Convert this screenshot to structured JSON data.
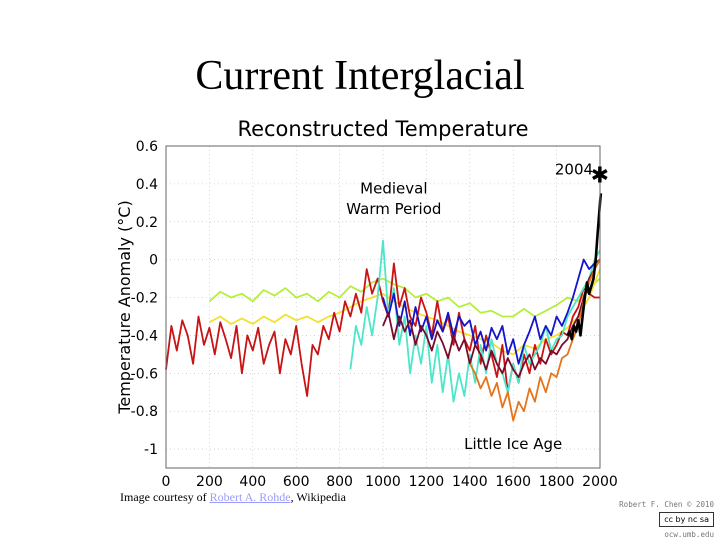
{
  "slide": {
    "title": "Current Interglacial",
    "credit_prefix": "Image courtesy of ",
    "credit_link": "Robert A. Rohde",
    "credit_suffix": ", Wikipedia",
    "watermark_author": "Robert F. Chen © 2010",
    "watermark_license": "cc by nc sa",
    "watermark_site": "ocw.umb.edu"
  },
  "chart_data": {
    "type": "line",
    "title": "Reconstructed Temperature",
    "xlabel": "",
    "ylabel": "Temperature Anomaly (°C)",
    "xlim": [
      0,
      2000
    ],
    "ylim": [
      -1.1,
      0.6
    ],
    "xticks": [
      0,
      200,
      400,
      600,
      800,
      1000,
      1200,
      1400,
      1600,
      1800,
      2000
    ],
    "yticks": [
      0.6,
      0.4,
      0.2,
      0,
      -0.2,
      -0.4,
      -0.6,
      -0.8,
      -1
    ],
    "ytick_labels": [
      "0.6",
      "0.4",
      "0.2",
      "0",
      "-0.2",
      "-0.4",
      "-0.6",
      "-0.8",
      "-1"
    ],
    "grid": true,
    "annotations": [
      {
        "text": "Medieval",
        "x": 1050,
        "y": 0.35
      },
      {
        "text": "Warm Period",
        "x": 1050,
        "y": 0.24
      },
      {
        "text": "Little Ice Age",
        "x": 1600,
        "y": -1.0
      },
      {
        "text": "2004",
        "x": 1880,
        "y": 0.45
      }
    ],
    "marker": {
      "label": "2004",
      "x": 2004,
      "y": 0.45
    },
    "series": [
      {
        "name": "reconstruction-yellowgreen",
        "color": "#b5ef3c",
        "x": [
          200,
          250,
          300,
          350,
          400,
          450,
          500,
          550,
          600,
          650,
          700,
          750,
          800,
          850,
          900,
          950,
          1000,
          1050,
          1100,
          1150,
          1200,
          1250,
          1300,
          1350,
          1400,
          1450,
          1500,
          1550,
          1600,
          1650,
          1700,
          1750,
          1800,
          1850,
          1900,
          1950,
          2000
        ],
        "y": [
          -0.22,
          -0.17,
          -0.2,
          -0.18,
          -0.22,
          -0.16,
          -0.19,
          -0.15,
          -0.2,
          -0.18,
          -0.22,
          -0.17,
          -0.2,
          -0.14,
          -0.17,
          -0.12,
          -0.1,
          -0.13,
          -0.15,
          -0.2,
          -0.18,
          -0.22,
          -0.2,
          -0.25,
          -0.23,
          -0.28,
          -0.27,
          -0.3,
          -0.3,
          -0.26,
          -0.3,
          -0.27,
          -0.24,
          -0.2,
          -0.22,
          -0.15,
          -0.1
        ]
      },
      {
        "name": "reconstruction-yellow",
        "color": "#f2e12d",
        "x": [
          200,
          250,
          300,
          350,
          400,
          450,
          500,
          550,
          600,
          650,
          700,
          750,
          800,
          850,
          900,
          950,
          1000,
          1050,
          1100,
          1150,
          1200,
          1250,
          1300,
          1350,
          1400,
          1450,
          1500,
          1550,
          1600,
          1650,
          1700,
          1750,
          1800,
          1850,
          1900,
          1950,
          2000
        ],
        "y": [
          -0.33,
          -0.3,
          -0.34,
          -0.31,
          -0.34,
          -0.3,
          -0.33,
          -0.29,
          -0.32,
          -0.3,
          -0.33,
          -0.3,
          -0.28,
          -0.25,
          -0.22,
          -0.2,
          -0.18,
          -0.22,
          -0.25,
          -0.28,
          -0.3,
          -0.32,
          -0.35,
          -0.38,
          -0.4,
          -0.42,
          -0.44,
          -0.48,
          -0.5,
          -0.45,
          -0.47,
          -0.42,
          -0.4,
          -0.36,
          -0.3,
          -0.2,
          -0.05
        ]
      },
      {
        "name": "reconstruction-red-long",
        "color": "#c81414",
        "x": [
          0,
          25,
          50,
          75,
          100,
          125,
          150,
          175,
          200,
          225,
          250,
          275,
          300,
          325,
          350,
          375,
          400,
          425,
          450,
          475,
          500,
          525,
          550,
          575,
          600,
          625,
          650,
          675,
          700,
          725,
          750,
          775,
          800,
          825,
          850,
          875,
          900,
          925,
          950,
          975,
          1000,
          1025,
          1050,
          1075,
          1100,
          1125,
          1150,
          1175,
          1200,
          1225,
          1250,
          1275,
          1300,
          1325,
          1350,
          1375,
          1400,
          1425,
          1450,
          1475,
          1500,
          1525,
          1550,
          1575,
          1600,
          1625,
          1650,
          1675,
          1700,
          1725,
          1750,
          1775,
          1800,
          1825,
          1850,
          1875,
          1900,
          1925,
          1950,
          1975,
          2000
        ],
        "y": [
          -0.58,
          -0.35,
          -0.48,
          -0.32,
          -0.4,
          -0.55,
          -0.3,
          -0.45,
          -0.36,
          -0.5,
          -0.33,
          -0.42,
          -0.52,
          -0.35,
          -0.6,
          -0.4,
          -0.48,
          -0.36,
          -0.55,
          -0.45,
          -0.38,
          -0.6,
          -0.42,
          -0.5,
          -0.35,
          -0.55,
          -0.72,
          -0.45,
          -0.5,
          -0.35,
          -0.42,
          -0.28,
          -0.38,
          -0.22,
          -0.3,
          -0.18,
          -0.28,
          -0.05,
          -0.18,
          -0.1,
          -0.22,
          -0.3,
          -0.02,
          -0.25,
          -0.15,
          -0.3,
          -0.35,
          -0.2,
          -0.28,
          -0.4,
          -0.22,
          -0.38,
          -0.3,
          -0.45,
          -0.28,
          -0.42,
          -0.48,
          -0.35,
          -0.55,
          -0.4,
          -0.5,
          -0.62,
          -0.45,
          -0.7,
          -0.55,
          -0.65,
          -0.5,
          -0.6,
          -0.45,
          -0.55,
          -0.42,
          -0.5,
          -0.45,
          -0.38,
          -0.4,
          -0.3,
          -0.25,
          -0.15,
          -0.18,
          -0.2,
          -0.2
        ]
      },
      {
        "name": "reconstruction-cyan",
        "color": "#4de6c8",
        "x": [
          850,
          875,
          900,
          925,
          950,
          975,
          1000,
          1025,
          1050,
          1075,
          1100,
          1125,
          1150,
          1175,
          1200,
          1225,
          1250,
          1275,
          1300,
          1325,
          1350,
          1375,
          1400,
          1425,
          1450,
          1475,
          1500,
          1525,
          1550,
          1575,
          1600,
          1625,
          1650,
          1675,
          1700,
          1725,
          1750,
          1775,
          1800,
          1825,
          1850,
          1875,
          1900,
          1925,
          1950,
          1975,
          2000
        ],
        "y": [
          -0.58,
          -0.35,
          -0.45,
          -0.25,
          -0.4,
          -0.2,
          0.1,
          -0.3,
          -0.15,
          -0.45,
          -0.3,
          -0.6,
          -0.4,
          -0.55,
          -0.35,
          -0.65,
          -0.45,
          -0.7,
          -0.5,
          -0.75,
          -0.6,
          -0.72,
          -0.5,
          -0.65,
          -0.45,
          -0.6,
          -0.42,
          -0.55,
          -0.6,
          -0.7,
          -0.55,
          -0.65,
          -0.45,
          -0.55,
          -0.5,
          -0.45,
          -0.35,
          -0.48,
          -0.42,
          -0.4,
          -0.3,
          -0.25,
          -0.2,
          -0.15,
          -0.1,
          0.0,
          0.05
        ]
      },
      {
        "name": "reconstruction-blue",
        "color": "#1414c8",
        "x": [
          1000,
          1025,
          1050,
          1075,
          1100,
          1125,
          1150,
          1175,
          1200,
          1225,
          1250,
          1275,
          1300,
          1325,
          1350,
          1375,
          1400,
          1425,
          1450,
          1475,
          1500,
          1525,
          1550,
          1575,
          1600,
          1625,
          1650,
          1675,
          1700,
          1725,
          1750,
          1775,
          1800,
          1825,
          1850,
          1875,
          1900,
          1925,
          1950,
          1975,
          2000
        ],
        "y": [
          -0.2,
          -0.3,
          -0.18,
          -0.35,
          -0.22,
          -0.4,
          -0.25,
          -0.38,
          -0.3,
          -0.42,
          -0.32,
          -0.38,
          -0.28,
          -0.4,
          -0.3,
          -0.35,
          -0.32,
          -0.45,
          -0.38,
          -0.48,
          -0.36,
          -0.42,
          -0.35,
          -0.5,
          -0.42,
          -0.55,
          -0.45,
          -0.38,
          -0.3,
          -0.42,
          -0.35,
          -0.4,
          -0.3,
          -0.35,
          -0.28,
          -0.2,
          -0.1,
          0.0,
          -0.05,
          -0.02,
          0.0
        ]
      },
      {
        "name": "reconstruction-darkred",
        "color": "#7a0a2a",
        "x": [
          1000,
          1025,
          1050,
          1075,
          1100,
          1125,
          1150,
          1175,
          1200,
          1225,
          1250,
          1275,
          1300,
          1325,
          1350,
          1375,
          1400,
          1425,
          1450,
          1475,
          1500,
          1525,
          1550,
          1575,
          1600,
          1625,
          1650,
          1675,
          1700,
          1725,
          1750,
          1775,
          1800,
          1825,
          1850,
          1875,
          1900,
          1925,
          1950,
          1975,
          2000
        ],
        "y": [
          -0.35,
          -0.28,
          -0.42,
          -0.3,
          -0.38,
          -0.32,
          -0.45,
          -0.35,
          -0.4,
          -0.48,
          -0.38,
          -0.44,
          -0.52,
          -0.4,
          -0.48,
          -0.42,
          -0.55,
          -0.45,
          -0.5,
          -0.58,
          -0.48,
          -0.55,
          -0.6,
          -0.52,
          -0.58,
          -0.62,
          -0.55,
          -0.5,
          -0.58,
          -0.52,
          -0.55,
          -0.48,
          -0.5,
          -0.45,
          -0.42,
          -0.35,
          -0.3,
          -0.2,
          -0.1,
          -0.05,
          0.0
        ]
      },
      {
        "name": "reconstruction-orange",
        "color": "#e8741a",
        "x": [
          1400,
          1425,
          1450,
          1475,
          1500,
          1525,
          1550,
          1575,
          1600,
          1625,
          1650,
          1675,
          1700,
          1725,
          1750,
          1775,
          1800,
          1825,
          1850,
          1875,
          1900,
          1925,
          1950,
          1975,
          2000
        ],
        "y": [
          -0.55,
          -0.6,
          -0.68,
          -0.62,
          -0.72,
          -0.65,
          -0.78,
          -0.7,
          -0.85,
          -0.75,
          -0.8,
          -0.68,
          -0.75,
          -0.62,
          -0.7,
          -0.6,
          -0.62,
          -0.52,
          -0.5,
          -0.42,
          -0.35,
          -0.22,
          -0.12,
          -0.05,
          0.0
        ]
      },
      {
        "name": "instrumental-black",
        "color": "#000000",
        "x": [
          1850,
          1860,
          1870,
          1880,
          1890,
          1900,
          1910,
          1920,
          1930,
          1940,
          1950,
          1960,
          1970,
          1980,
          1990,
          2000,
          2004
        ],
        "y": [
          -0.4,
          -0.38,
          -0.42,
          -0.35,
          -0.38,
          -0.32,
          -0.4,
          -0.3,
          -0.2,
          -0.12,
          -0.18,
          -0.14,
          -0.1,
          0.0,
          0.15,
          0.3,
          0.35
        ]
      }
    ]
  }
}
